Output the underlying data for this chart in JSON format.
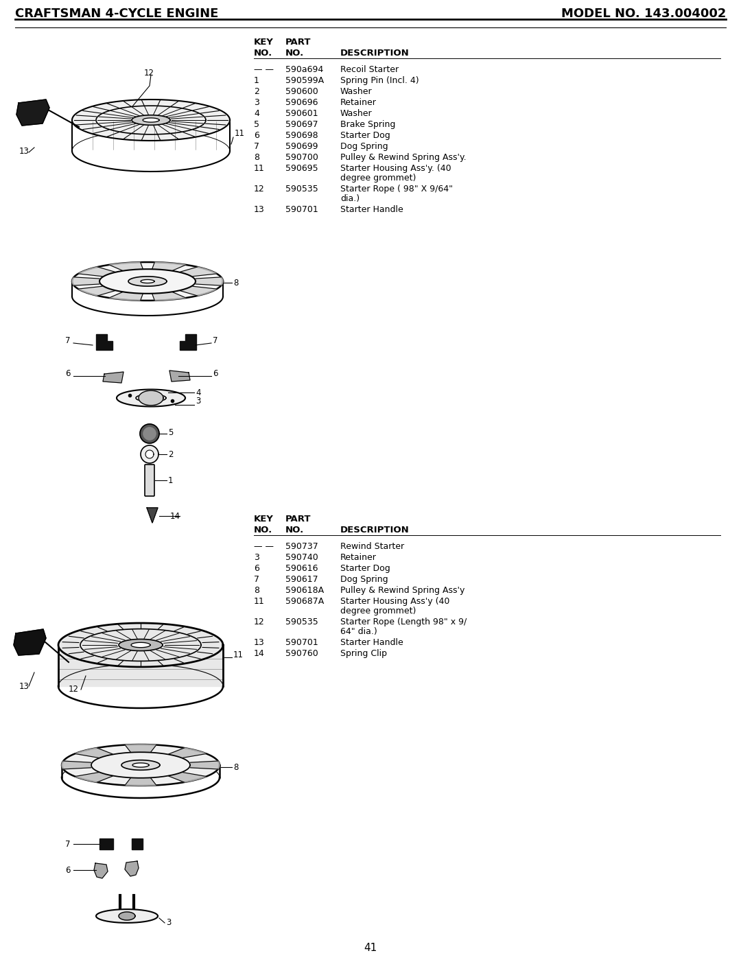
{
  "title_left": "CRAFTSMAN 4-CYCLE ENGINE",
  "title_right": "MODEL NO. 143.004002",
  "table1": [
    [
      "— —",
      "590a694",
      "Recoil Starter"
    ],
    [
      "1",
      "590599A",
      "Spring Pin (Incl. 4)"
    ],
    [
      "2",
      "590600",
      "Washer"
    ],
    [
      "3",
      "590696",
      "Retainer"
    ],
    [
      "4",
      "590601",
      "Washer"
    ],
    [
      "5",
      "590697",
      "Brake Spring"
    ],
    [
      "6",
      "590698",
      "Starter Dog"
    ],
    [
      "7",
      "590699",
      "Dog Spring"
    ],
    [
      "8",
      "590700",
      "Pulley & Rewind Spring Ass'y."
    ],
    [
      "11",
      "590695",
      "Starter Housing Ass'y. (40\ndegree grommet)"
    ],
    [
      "12",
      "590535",
      "Starter Rope ( 98\" X 9/64\"\ndia.)"
    ],
    [
      "13",
      "590701",
      "Starter Handle"
    ]
  ],
  "table2": [
    [
      "— —",
      "590737",
      "Rewind Starter"
    ],
    [
      "3",
      "590740",
      "Retainer"
    ],
    [
      "6",
      "590616",
      "Starter Dog"
    ],
    [
      "7",
      "590617",
      "Dog Spring"
    ],
    [
      "8",
      "590618A",
      "Pulley & Rewind Spring Ass'y"
    ],
    [
      "11",
      "590687A",
      "Starter Housing Ass'y (40\ndegree grommet)"
    ],
    [
      "12",
      "590535",
      "Starter Rope (Length 98\" x 9/\n64\" dia.)"
    ],
    [
      "13",
      "590701",
      "Starter Handle"
    ],
    [
      "14",
      "590760",
      "Spring Clip"
    ]
  ],
  "page_number": "41",
  "bg_color": "#ffffff",
  "text_color": "#000000"
}
